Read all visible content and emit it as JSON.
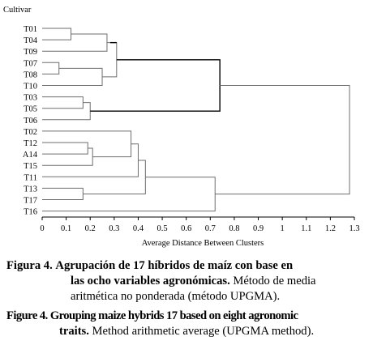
{
  "chart_data": {
    "type": "dendrogram",
    "ylabel": "Cultivar",
    "xlabel": "Average Distance Between Clusters",
    "xlim": [
      0,
      1.3
    ],
    "xticks": [
      "0",
      "0.1",
      "0.2",
      "0.3",
      "0.4",
      "0.5",
      "0.6",
      "0.7",
      "0.8",
      "0.9",
      "1",
      "1.1",
      "1.2",
      "1.3"
    ],
    "leaves": [
      "T01",
      "T04",
      "T09",
      "T07",
      "T08",
      "T10",
      "T03",
      "T05",
      "T06",
      "T02",
      "T12",
      "A14",
      "T15",
      "T11",
      "T13",
      "T17",
      "T16"
    ],
    "merges": [
      {
        "a": "T01",
        "b": "T04",
        "height": 0.12
      },
      {
        "a": "T07",
        "b": "T08",
        "height": 0.07
      },
      {
        "a": "T03",
        "b": "T05",
        "height": 0.17
      },
      {
        "a": "T12",
        "b": "A14",
        "height": 0.19
      },
      {
        "a": "T13",
        "b": "T17",
        "height": 0.17
      },
      {
        "a": "T01+T04",
        "b": "T09",
        "height": 0.27
      },
      {
        "a": "T07+T08",
        "b": "T10",
        "height": 0.25
      },
      {
        "a": "T03+T05",
        "b": "T06",
        "height": 0.2
      },
      {
        "a": "T12+A14",
        "b": "T15",
        "height": 0.21
      },
      {
        "a": "G1",
        "b": "G2",
        "height": 0.31
      },
      {
        "a": "T02",
        "b": "G4",
        "height": 0.37
      },
      {
        "a": "G1G2",
        "b": "G3",
        "height": 0.74
      },
      {
        "a": "G5",
        "b": "T11",
        "height": 0.4
      },
      {
        "a": "G5T11",
        "b": "G6",
        "height": 0.43
      },
      {
        "a": "G7",
        "b": "T16",
        "height": 0.72
      },
      {
        "a": "upper",
        "b": "lower",
        "height": 1.28
      }
    ],
    "highlight_color": "#000000",
    "line_color": "#6e6e6e"
  },
  "caption_es": {
    "label": "Figura 4.",
    "bold_line1": "Agrupación de 17 híbridos de maíz con base en",
    "bold_line2": "las ocho variables agronómicas.",
    "normal_line2": "Método de media",
    "normal_line3": "aritmética no ponderada (método UPGMA)."
  },
  "caption_en": {
    "label": "Figure 4.",
    "bold_line1": "Grouping maize hybrids 17 based on eight agronomic",
    "bold_line2": "traits.",
    "normal_line2": "Method arithmetic average (UPGMA method)."
  }
}
